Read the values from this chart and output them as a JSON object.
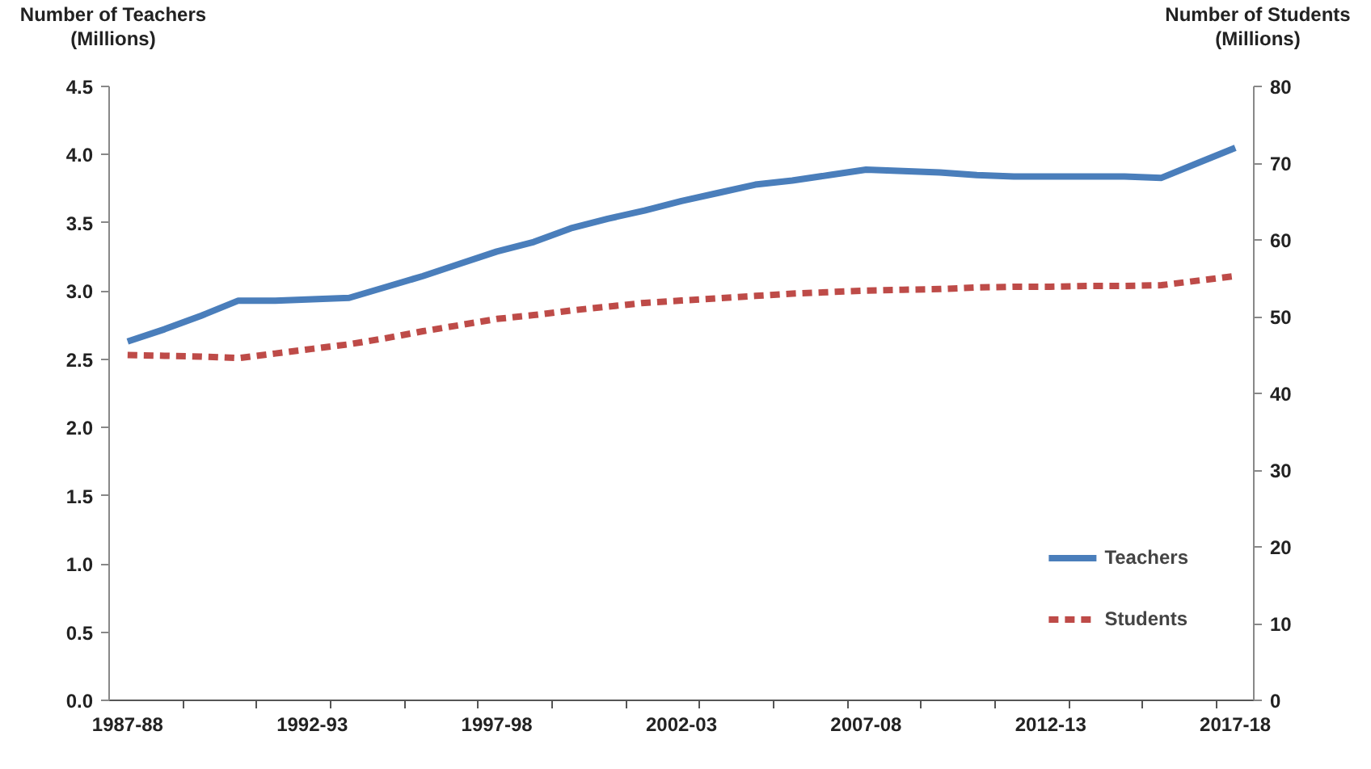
{
  "chart_data": {
    "type": "line",
    "ylabel": "Number of Teachers\n(Millions)",
    "y2label": "Number of Students\n(Millions)",
    "categories": [
      "1987-88",
      null,
      null,
      null,
      null,
      "1992-93",
      null,
      null,
      null,
      null,
      "1997-98",
      null,
      null,
      null,
      null,
      "2002-03",
      null,
      null,
      null,
      null,
      "2007-08",
      null,
      null,
      null,
      null,
      "2012-13",
      null,
      null,
      null,
      null,
      "2017-18"
    ],
    "series": [
      {
        "name": "Teachers",
        "color": "#4a7ebb",
        "line_style": "solid",
        "values": [
          2.63,
          2.72,
          2.82,
          2.93,
          2.93,
          2.94,
          2.95,
          3.03,
          3.11,
          3.2,
          3.29,
          3.36,
          3.46,
          3.53,
          3.59,
          3.66,
          3.72,
          3.78,
          3.81,
          3.85,
          3.89,
          3.88,
          3.87,
          3.85,
          3.84,
          3.84,
          3.84,
          3.84,
          3.83,
          3.94,
          4.05
        ]
      },
      {
        "name": "Students",
        "color": "#be4b48",
        "line_style": "dashed",
        "axis": "y2",
        "values": [
          45.0,
          44.9,
          44.8,
          44.6,
          45.2,
          45.8,
          46.4,
          47.2,
          48.1,
          48.9,
          49.7,
          50.2,
          50.8,
          51.3,
          51.8,
          52.1,
          52.4,
          52.7,
          53.0,
          53.2,
          53.4,
          53.5,
          53.6,
          53.8,
          53.9,
          53.9,
          54.0,
          54.0,
          54.1,
          54.7,
          55.3
        ]
      }
    ],
    "ylim": [
      0,
      4.5
    ],
    "yticks": [
      {
        "value": 0,
        "label": "0.0"
      },
      {
        "value": 0.5,
        "label": "0.5"
      },
      {
        "value": 1,
        "label": "1.0"
      },
      {
        "value": 1.5,
        "label": "1.5"
      },
      {
        "value": 2,
        "label": "2.0"
      },
      {
        "value": 2.5,
        "label": "2.5"
      },
      {
        "value": 3,
        "label": "3.0"
      },
      {
        "value": 3.5,
        "label": "3.5"
      },
      {
        "value": 4,
        "label": "4.0"
      },
      {
        "value": 4.5,
        "label": "4.5"
      }
    ],
    "y2lim": [
      0,
      80
    ],
    "y2ticks": [
      0,
      10,
      20,
      30,
      40,
      50,
      60,
      70,
      80
    ],
    "grid": false,
    "legend": "bottom right",
    "marker": "none"
  }
}
